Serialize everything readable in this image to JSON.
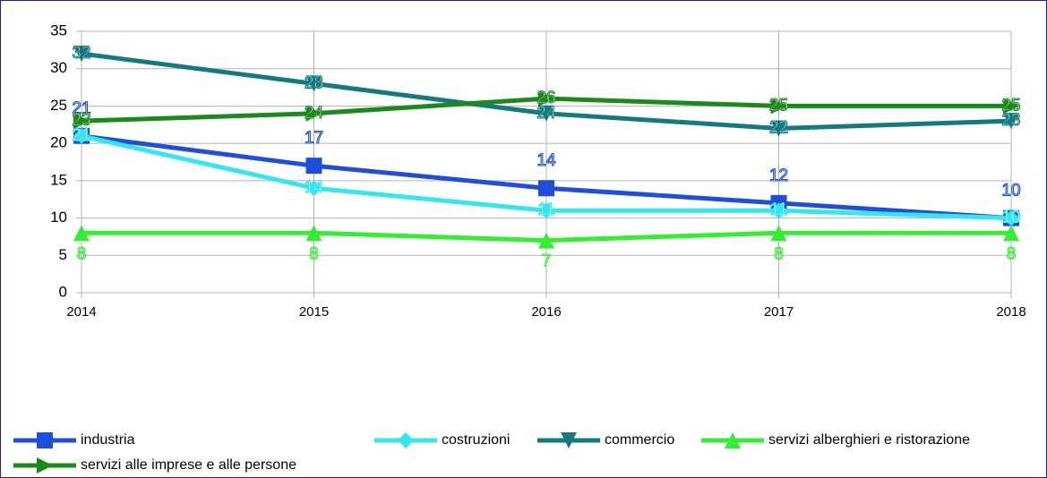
{
  "chart_data": {
    "type": "line",
    "x": [
      2014,
      2015,
      2016,
      2017,
      2018
    ],
    "xlim": [
      2014,
      2018
    ],
    "xticks": [
      2014,
      2015,
      2016,
      2017,
      2018
    ],
    "ylim": [
      0,
      35
    ],
    "yticks": [
      0,
      5,
      10,
      15,
      20,
      25,
      30,
      35
    ],
    "grid": true,
    "legend": "bottom",
    "series": [
      {
        "name": "industria",
        "color": "#1d4fdc",
        "marker": "square",
        "values": [
          21,
          17,
          14,
          12,
          10
        ]
      },
      {
        "name": "costruzioni",
        "color": "#33e6f0",
        "marker": "diamond",
        "values": [
          21,
          14,
          11,
          11,
          10
        ]
      },
      {
        "name": "commercio",
        "color": "#137a80",
        "marker": "triangle-down",
        "values": [
          32,
          28,
          24,
          22,
          23
        ]
      },
      {
        "name": "servizi alberghieri e ristorazione",
        "color": "#33ee33",
        "marker": "triangle-up",
        "values": [
          8,
          8,
          7,
          8,
          8
        ]
      },
      {
        "name": "servizi alle imprese e alle persone",
        "color": "#1b8a1b",
        "marker": "arrow",
        "values": [
          23,
          24,
          26,
          25,
          25
        ]
      }
    ]
  }
}
